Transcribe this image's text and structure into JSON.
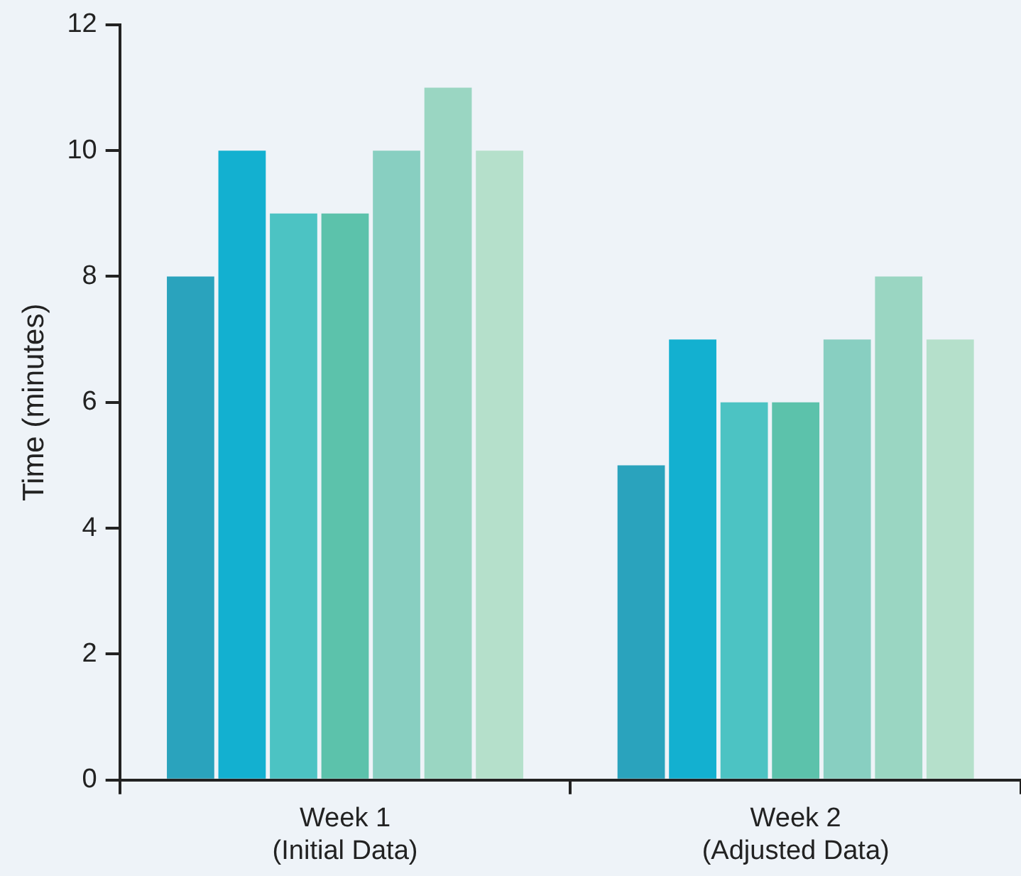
{
  "chart_data": {
    "type": "bar",
    "ylabel": "Time (minutes)",
    "categories": [
      "Week 1\n(Initial Data)",
      "Week 2\n(Adjusted Data)"
    ],
    "series": [
      {
        "color": "#2aa3bd",
        "values": [
          8,
          5
        ]
      },
      {
        "color": "#13b0d0",
        "values": [
          10,
          7
        ]
      },
      {
        "color": "#4cc3c3",
        "values": [
          9,
          6
        ]
      },
      {
        "color": "#5cc2ab",
        "values": [
          9,
          6
        ]
      },
      {
        "color": "#88cfc1",
        "values": [
          10,
          7
        ]
      },
      {
        "color": "#9ad6c2",
        "values": [
          11,
          8
        ]
      },
      {
        "color": "#b5e0cb",
        "values": [
          10,
          7
        ]
      }
    ],
    "ylim": [
      0,
      12
    ],
    "yticks": [
      0,
      2,
      4,
      6,
      8,
      10,
      12
    ],
    "grid": false,
    "legend": false
  }
}
